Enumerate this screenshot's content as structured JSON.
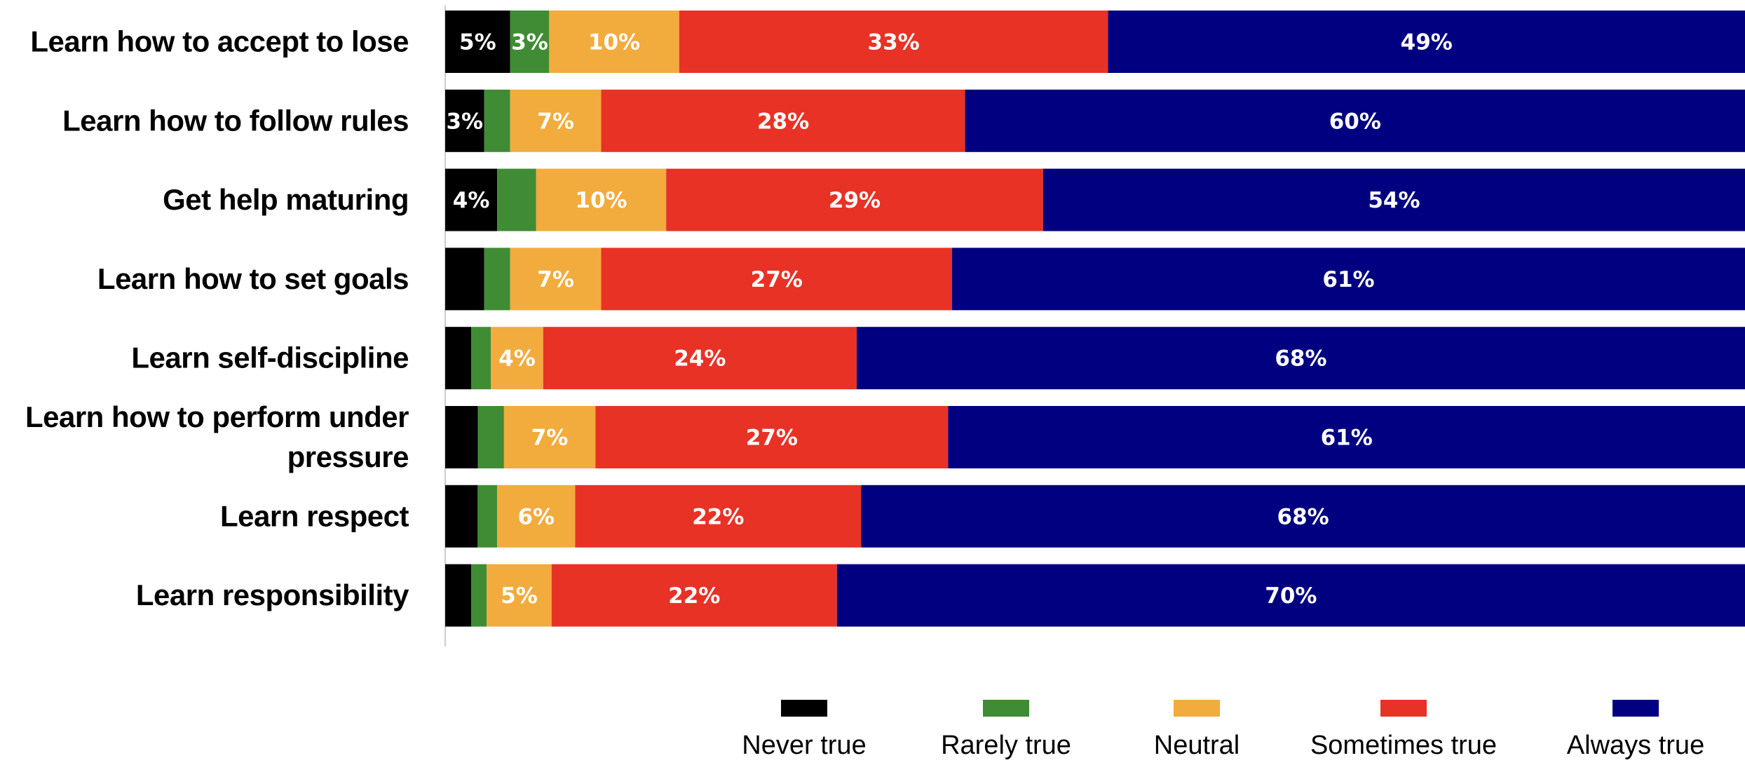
{
  "chart_data": {
    "type": "bar",
    "orientation": "horizontal",
    "stacked": true,
    "xlim": [
      0,
      100
    ],
    "grid": false,
    "legend_position": "bottom",
    "categories": [
      "Learn how to accept to lose",
      "Learn how to follow rules",
      "Get help maturing",
      "Learn how to set goals",
      "Learn self-discipline",
      "Learn how to perform under pressure",
      "Learn respect",
      "Learn responsibility"
    ],
    "series": [
      {
        "name": "Never true",
        "color": "#000000",
        "values": [
          5,
          3,
          4,
          3,
          2,
          2.5,
          2.5,
          2
        ]
      },
      {
        "name": "Rarely true",
        "color": "#3f8c35",
        "values": [
          3,
          2,
          3,
          2,
          1.5,
          2,
          1.5,
          1.2
        ]
      },
      {
        "name": "Neutral",
        "color": "#f2ab3d",
        "values": [
          10,
          7,
          10,
          7,
          4,
          7,
          6,
          5
        ]
      },
      {
        "name": "Sometimes true",
        "color": "#e83226",
        "values": [
          33,
          28,
          29,
          27,
          24,
          27,
          22,
          22
        ]
      },
      {
        "name": "Always true",
        "color": "#000080",
        "values": [
          49,
          60,
          54,
          61,
          68,
          61,
          68,
          70
        ]
      }
    ],
    "data_labels": [
      [
        "5%",
        "3%",
        "10%",
        "33%",
        "49%"
      ],
      [
        "3%",
        "",
        "7%",
        "28%",
        "60%"
      ],
      [
        "4%",
        "",
        "10%",
        "29%",
        "54%"
      ],
      [
        "",
        "",
        "7%",
        "27%",
        "61%"
      ],
      [
        "",
        "",
        "4%",
        "24%",
        "68%"
      ],
      [
        "",
        "",
        "7%",
        "27%",
        "61%"
      ],
      [
        "",
        "",
        "6%",
        "22%",
        "68%"
      ],
      [
        "",
        "",
        "5%",
        "22%",
        "70%"
      ]
    ],
    "category_label_lines": [
      [
        "Learn how to accept to lose"
      ],
      [
        "Learn how to follow rules"
      ],
      [
        "Get help maturing"
      ],
      [
        "Learn how to set goals"
      ],
      [
        "Learn self-discipline"
      ],
      [
        "Learn how to perform under",
        "pressure"
      ],
      [
        "Learn respect"
      ],
      [
        "Learn responsibility"
      ]
    ]
  }
}
